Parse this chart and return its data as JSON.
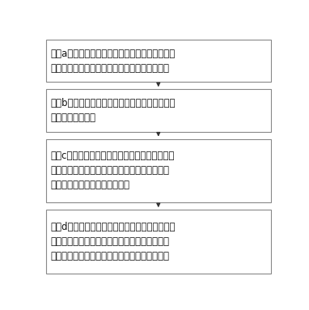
{
  "background_color": "#ffffff",
  "box_fill_color": "#ffffff",
  "box_edge_color": "#888888",
  "arrow_color": "#333333",
  "text_color": "#111111",
  "font_size": 8.5,
  "boxes": [
    {
      "label": "步骤a，启动挖掘机，流量传感装置采集发动机喷\n油嘴处的燃油流量数据并发送至模数转换装置；",
      "lines": 2
    },
    {
      "label": "步骤b，模数转换装置将接收到的数据数字量化并\n发送至控制装置；",
      "lines": 2
    },
    {
      "label": "步骤c，控制装置中的运算器接收经数字量化后的\n数据判断并运算得出瞬时油耗量和累积油耗量，\n并将累积油耗量存入存储器中；",
      "lines": 3
    },
    {
      "label": "步骤d，显示装置中的控制器通过通信装置向运算\n器发送显示瞬时油耗量的指令，该运算器将运算\n得出的瞬时油耗量数据发送至显示装置中显示。",
      "lines": 3
    }
  ],
  "figsize": [
    3.82,
    3.83
  ],
  "dpi": 100
}
